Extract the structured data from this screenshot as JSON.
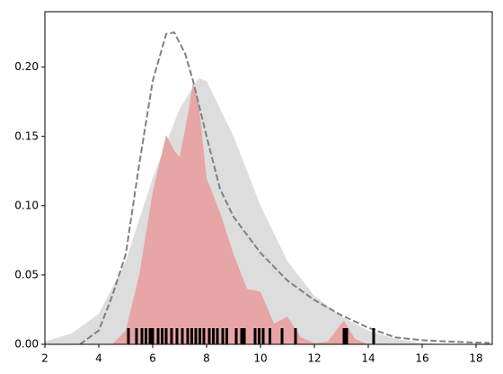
{
  "chart_data": {
    "type": "kde",
    "xlim": [
      2,
      18.6
    ],
    "xticks": [
      2,
      4,
      6,
      8,
      10,
      12,
      14,
      16,
      18
    ],
    "ylim": [
      0,
      0.24
    ],
    "yticks": [
      {
        "value": 0,
        "label": "0.00"
      },
      {
        "value": 0.05,
        "label": "0.05"
      },
      {
        "value": 0.1,
        "label": "0.10"
      },
      {
        "value": 0.15,
        "label": "0.15"
      },
      {
        "value": 0.2,
        "label": "0.20"
      }
    ],
    "series": [
      {
        "kind": "area",
        "color": "#dddddd",
        "x": [
          2,
          3,
          4,
          5,
          6,
          7,
          7.7,
          8,
          9,
          10,
          11,
          12,
          13,
          14,
          15,
          16,
          17
        ],
        "values": [
          0.002,
          0.008,
          0.022,
          0.06,
          0.12,
          0.17,
          0.192,
          0.19,
          0.15,
          0.1,
          0.06,
          0.035,
          0.02,
          0.01,
          0.004,
          0.001,
          0
        ]
      },
      {
        "kind": "area",
        "color": "#e8a5a5",
        "x": [
          4.5,
          5,
          5.5,
          6,
          6.5,
          6.8,
          7,
          7.3,
          7.5,
          7.7,
          8,
          8.5,
          9,
          9.5,
          10,
          10.5,
          11,
          11.5,
          12,
          12.5,
          13,
          13.1,
          13.5,
          14
        ],
        "values": [
          0,
          0.01,
          0.05,
          0.11,
          0.151,
          0.14,
          0.135,
          0.165,
          0.189,
          0.175,
          0.12,
          0.095,
          0.065,
          0.04,
          0.038,
          0.015,
          0.02,
          0.005,
          0.001,
          0.002,
          0.015,
          0.017,
          0.004,
          0
        ]
      },
      {
        "kind": "line",
        "color": "#808080",
        "dashed": true,
        "x": [
          3.3,
          4,
          4.5,
          5,
          5.5,
          6,
          6.5,
          6.8,
          7.2,
          7.5,
          8,
          8.5,
          9,
          10,
          11,
          12,
          13,
          14,
          15,
          16,
          17,
          18.5
        ],
        "values": [
          0,
          0.01,
          0.035,
          0.065,
          0.13,
          0.19,
          0.224,
          0.225,
          0.21,
          0.19,
          0.15,
          0.112,
          0.092,
          0.066,
          0.046,
          0.032,
          0.021,
          0.012,
          0.005,
          0.003,
          0.002,
          0.001
        ]
      },
      {
        "kind": "rug",
        "color": "#000000",
        "x": [
          5.1,
          5.4,
          5.6,
          5.75,
          5.9,
          6.0,
          6.2,
          6.35,
          6.5,
          6.7,
          6.9,
          7.1,
          7.3,
          7.45,
          7.6,
          7.75,
          7.9,
          8.1,
          8.25,
          8.4,
          8.6,
          8.75,
          9.1,
          9.3,
          9.4,
          9.8,
          9.95,
          10.1,
          10.35,
          10.8,
          11.3,
          13.1,
          13.2,
          14.2
        ]
      }
    ]
  }
}
